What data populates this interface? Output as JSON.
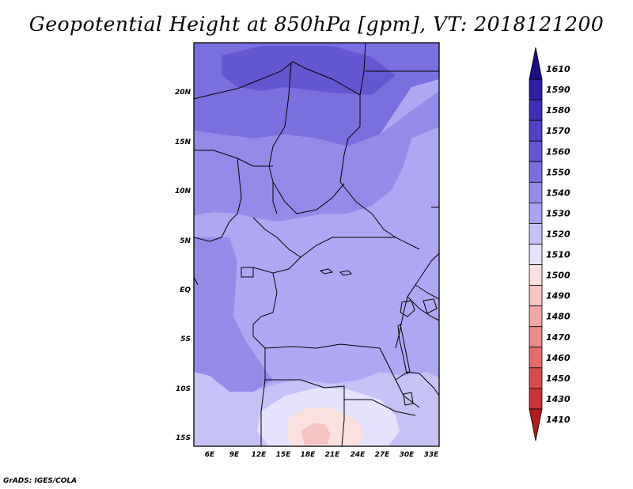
{
  "title": "Geopotential Height at 850hPa [gpm], VT: 2018121200",
  "credit": "GrADS: IGES/COLA",
  "map": {
    "lat_labels": [
      "20N",
      "15N",
      "10N",
      "5N",
      "EQ",
      "5S",
      "10S",
      "15S"
    ],
    "lon_labels": [
      "6E",
      "9E",
      "12E",
      "15E",
      "18E",
      "21E",
      "24E",
      "27E",
      "30E",
      "33E"
    ]
  },
  "colorbar": {
    "levels": [
      "1610",
      "1590",
      "1580",
      "1570",
      "1560",
      "1550",
      "1540",
      "1530",
      "1520",
      "1510",
      "1500",
      "1490",
      "1480",
      "1470",
      "1460",
      "1450",
      "1430",
      "1410"
    ],
    "colors": [
      "#1c0e8a",
      "#2d1ea6",
      "#3d2fb8",
      "#4f44c6",
      "#6457d2",
      "#7a6fde",
      "#948be9",
      "#aaa3f1",
      "#c6c2f7",
      "#e4e2fc",
      "#fbe0e0",
      "#f7c4c4",
      "#f3a7a7",
      "#ec8a8a",
      "#e36c6c",
      "#d84c4c",
      "#c93232",
      "#b01b1b"
    ]
  }
}
